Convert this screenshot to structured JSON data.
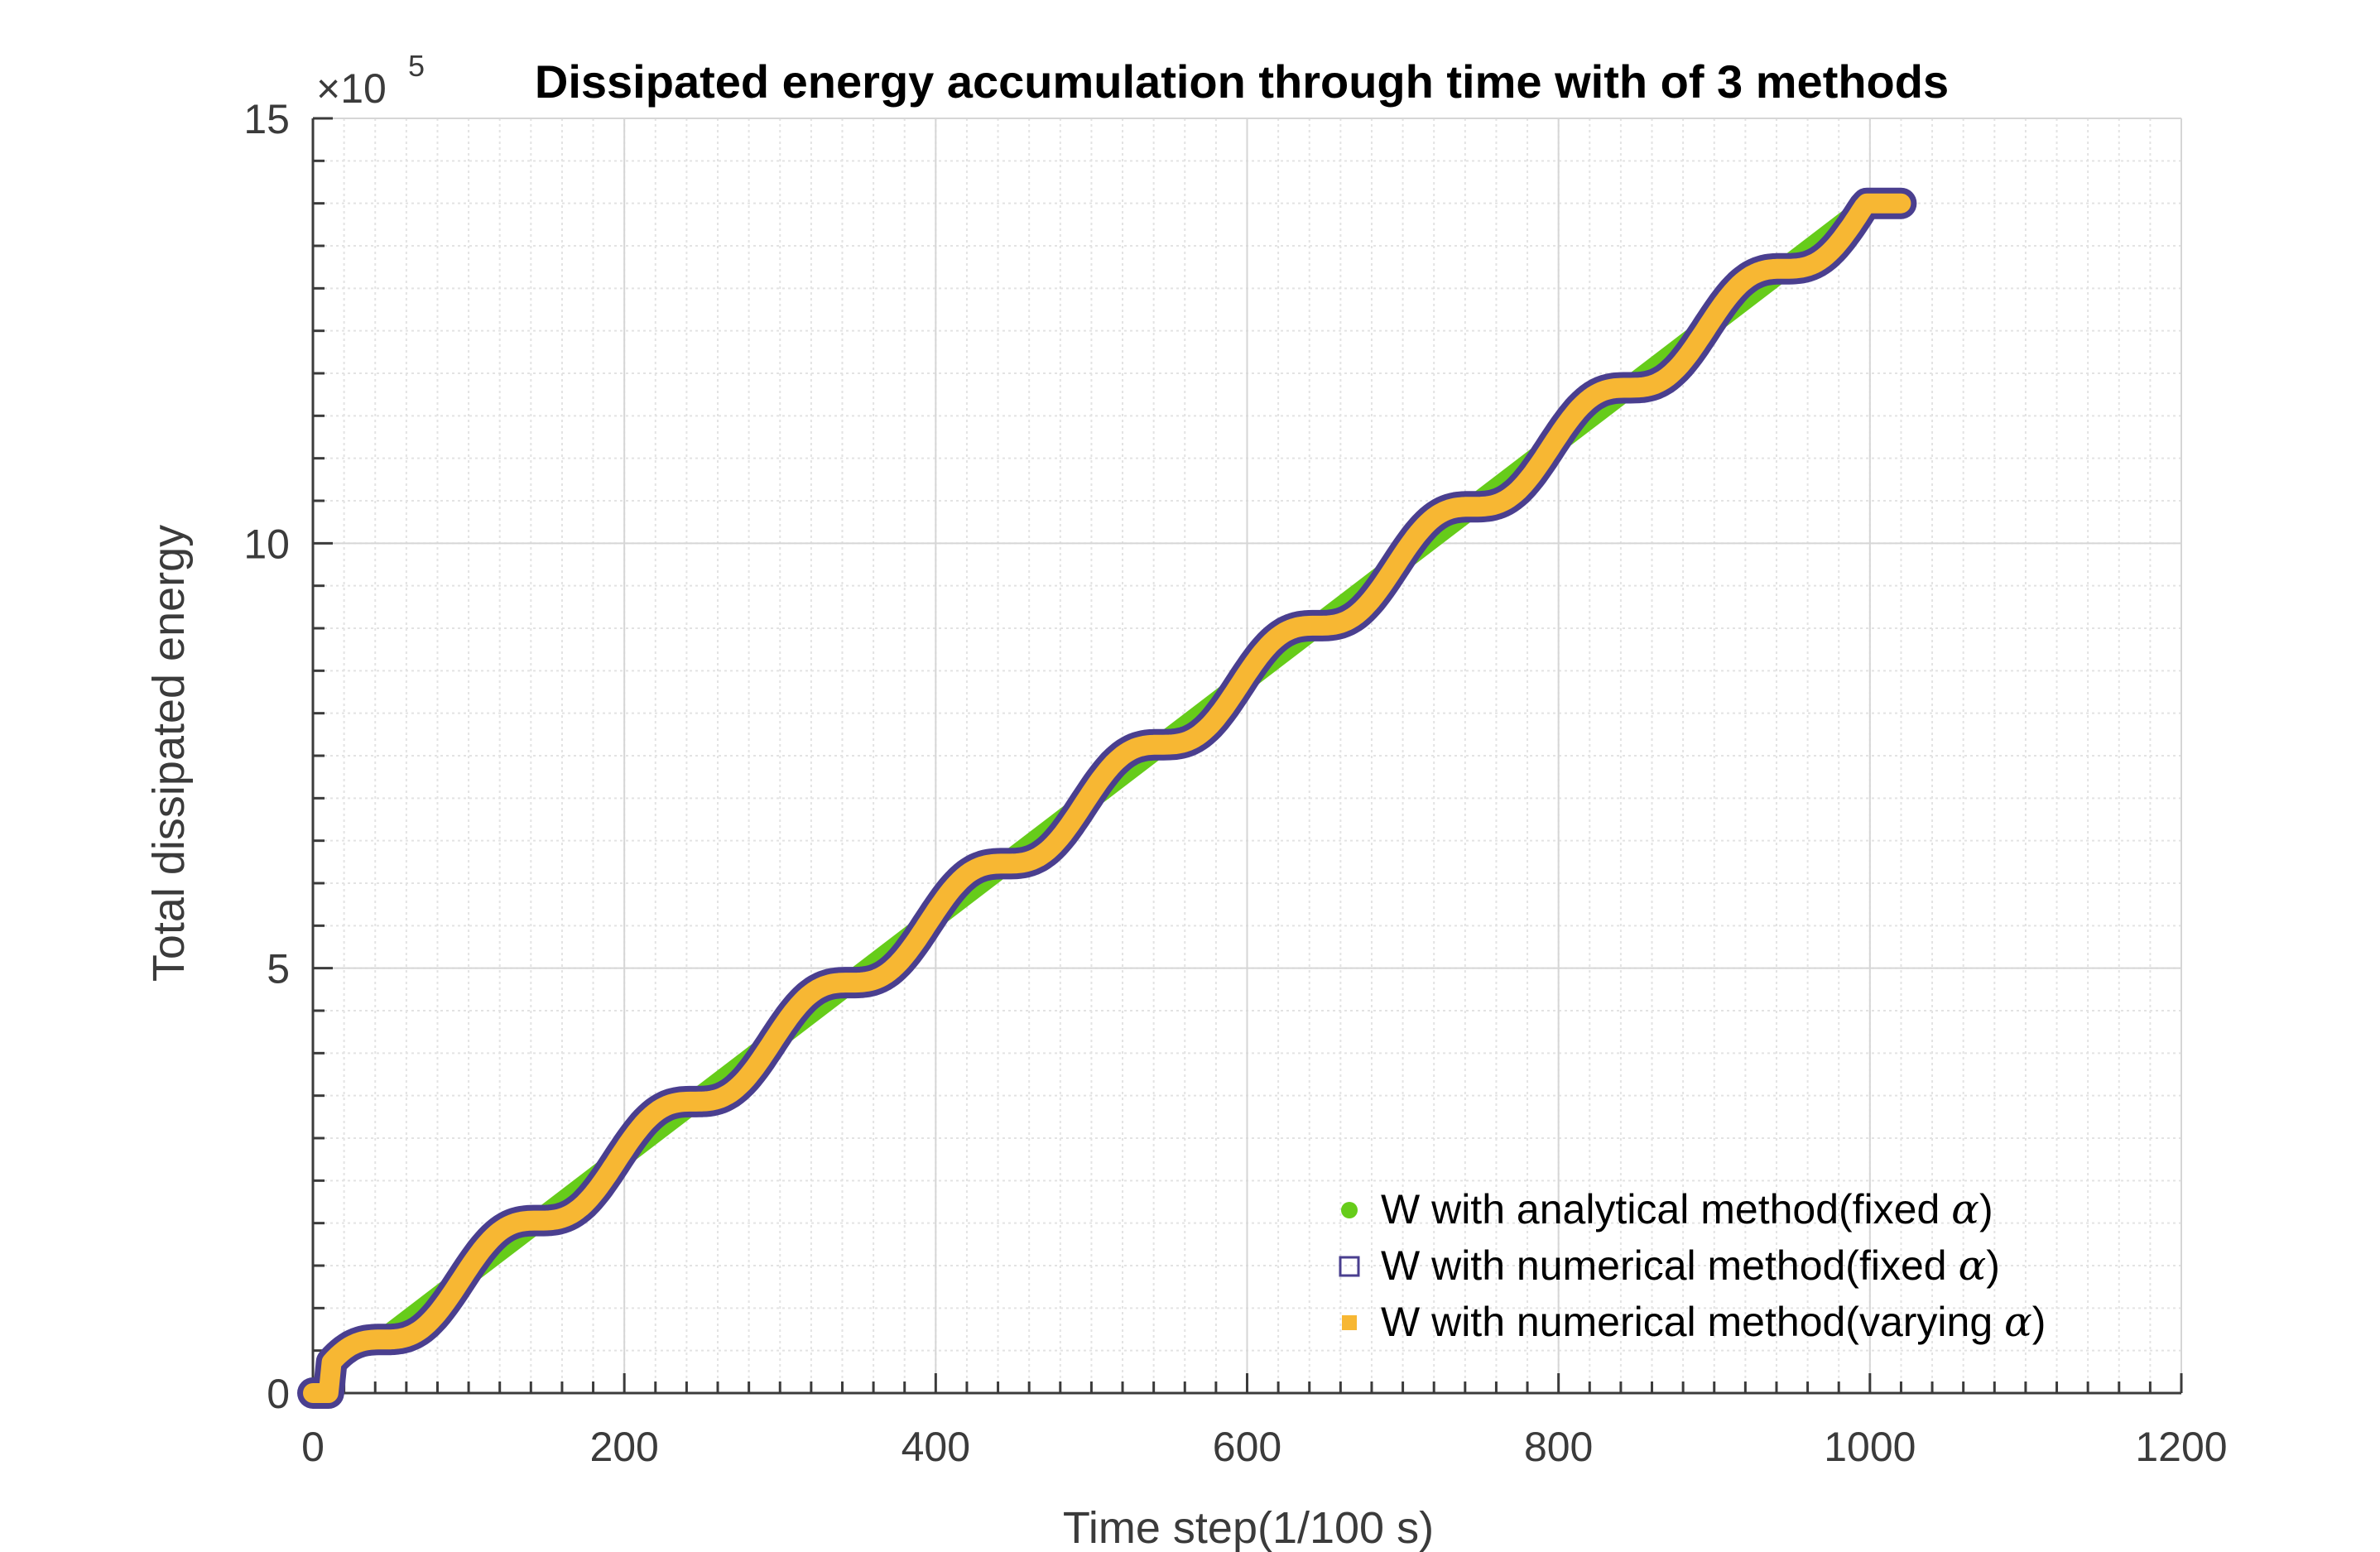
{
  "chart_data": {
    "type": "line",
    "title": "Dissipated energy accumulation through time with of 3 methods",
    "xlabel": "Time step(1/100 s)",
    "ylabel": "Total dissipated energy",
    "y_exponent": {
      "base": "×10",
      "power": "5"
    },
    "xlim": [
      0,
      1200
    ],
    "ylim": [
      0,
      15
    ],
    "x_ticks": [
      0,
      200,
      400,
      600,
      800,
      1000,
      1200
    ],
    "x_tick_labels": [
      "0",
      "200",
      "400",
      "600",
      "800",
      "1000",
      "1200"
    ],
    "y_ticks": [
      0,
      5,
      10,
      15
    ],
    "y_tick_labels": [
      "0",
      "5",
      "10",
      "15"
    ],
    "grid": true,
    "minor_grid": true,
    "legend_position": "bottom-right",
    "series": [
      {
        "name": "W with analytical method(fixed α)",
        "label_prefix": "W with analytical method(fixed ",
        "label_symbol": "α",
        "label_suffix": ")",
        "marker": "dot",
        "color": "#66cc1a",
        "x": [
          0,
          1000
        ],
        "y": [
          0,
          14.0
        ]
      },
      {
        "name": "W with numerical method(fixed α)",
        "label_prefix": "W with numerical method(fixed ",
        "label_symbol": "α",
        "label_suffix": ")",
        "marker": "square",
        "color": "#4a3f8f",
        "x": [
          0,
          1020
        ],
        "y": [
          0,
          14.0
        ],
        "description_values": {
          "plateaus_at": [
            0.7,
            2.1,
            3.5,
            4.9,
            6.3,
            7.7,
            9.0,
            10.4,
            11.8,
            13.2
          ]
        }
      },
      {
        "name": "W with numerical method(varying α)",
        "label_prefix": "W with numerical method(varying ",
        "label_symbol": "α",
        "label_suffix": ")",
        "marker": "square-filled",
        "color": "#f7b733",
        "x": [
          0,
          1020
        ],
        "y": [
          0,
          14.0
        ]
      }
    ]
  }
}
